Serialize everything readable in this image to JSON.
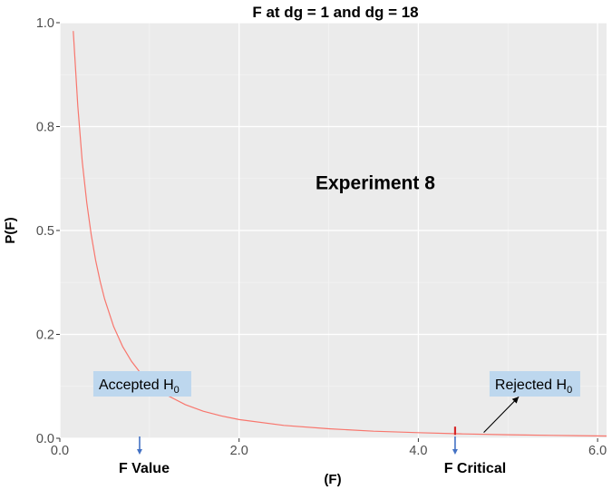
{
  "chart_data": {
    "type": "line",
    "title": "F at dg = 1 and dg = 18",
    "xlabel": "(F)",
    "ylabel": "P(F)",
    "xlim": [
      0,
      6.1
    ],
    "ylim": [
      0,
      1.0
    ],
    "x_ticks": [
      {
        "value": 0,
        "label": "0.0"
      },
      {
        "value": 2,
        "label": "2.0"
      },
      {
        "value": 4,
        "label": "4.0"
      },
      {
        "value": 6,
        "label": "6.0"
      }
    ],
    "y_ticks": [
      {
        "value": 0,
        "label": "0.0"
      },
      {
        "value": 0.25,
        "label": "0.2"
      },
      {
        "value": 0.5,
        "label": "0.5"
      },
      {
        "value": 0.75,
        "label": "0.8"
      },
      {
        "value": 1.0,
        "label": "1.0"
      }
    ],
    "grid": true,
    "series": [
      {
        "color": "#f8766d",
        "x": [
          0.15,
          0.2,
          0.25,
          0.3,
          0.35,
          0.4,
          0.45,
          0.5,
          0.6,
          0.7,
          0.8,
          0.9,
          1.0,
          1.2,
          1.4,
          1.6,
          1.8,
          2.0,
          2.5,
          3.0,
          3.5,
          4.0,
          4.5,
          5.0,
          5.5,
          6.1
        ],
        "y": [
          0.98,
          0.8,
          0.666,
          0.567,
          0.49,
          0.428,
          0.377,
          0.335,
          0.269,
          0.221,
          0.185,
          0.157,
          0.135,
          0.103,
          0.081,
          0.065,
          0.054,
          0.045,
          0.031,
          0.023,
          0.017,
          0.0135,
          0.0105,
          0.0085,
          0.007,
          0.0055
        ]
      }
    ],
    "annotations": {
      "experiment_label": "Experiment 8",
      "accepted_label": "Accepted H",
      "accepted_sub": "0",
      "rejected_label": "Rejected H",
      "rejected_sub": "0",
      "f_value_label": "F Value",
      "f_value_x": 0.89,
      "f_critical_label": "F Critical",
      "f_critical_x": 4.41,
      "box_color": "#bdd7ee",
      "marker_color": "#d62728",
      "arrow_color": "#4472c4"
    }
  }
}
